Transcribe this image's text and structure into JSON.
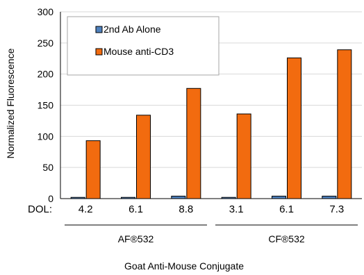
{
  "chart_data": {
    "type": "bar",
    "ylabel": "Normalized Fluorescence",
    "xlabel": "Goat Anti-Mouse Conjugate",
    "ylim": [
      0,
      300
    ],
    "yticks": [
      0,
      50,
      100,
      150,
      200,
      250,
      300
    ],
    "category_prefix": "DOL:",
    "categories": [
      "4.2",
      "6.1",
      "8.8",
      "3.1",
      "6.1",
      "7.3"
    ],
    "groups": [
      {
        "label": "AF®532",
        "start": 0,
        "end": 2
      },
      {
        "label": "CF®532",
        "start": 3,
        "end": 5
      }
    ],
    "series": [
      {
        "name": "2nd Ab Alone",
        "color": "#4f81bd",
        "values": [
          2,
          2,
          4,
          2,
          4,
          4
        ]
      },
      {
        "name": "Mouse anti-CD3",
        "color": "#f26b0f",
        "values": [
          93,
          134,
          177,
          136,
          226,
          239
        ]
      }
    ],
    "legend_position": "top-left",
    "grid": "horizontal"
  }
}
